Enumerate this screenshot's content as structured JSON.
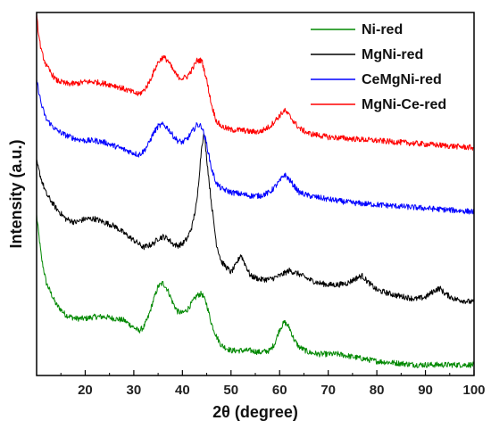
{
  "chart_data": {
    "type": "line",
    "title": "",
    "xlabel": "2θ (degree)",
    "ylabel": "Intensity (a.u.)",
    "xlim": [
      10,
      100
    ],
    "xticks": [
      20,
      30,
      40,
      50,
      60,
      70,
      80,
      90,
      100
    ],
    "ylim": [
      0,
      100
    ],
    "y_tick_labels": false,
    "grid": false,
    "legend_position": "top-right",
    "series": [
      {
        "name": "Ni-red",
        "color": "#008800",
        "x": [
          10,
          11,
          12,
          14,
          16,
          18,
          20,
          22,
          24,
          26,
          28,
          30,
          31,
          32,
          33,
          34,
          35,
          36,
          37,
          38,
          39,
          40,
          41,
          42,
          43,
          44,
          45,
          46,
          47,
          48,
          50,
          52,
          54,
          56,
          58,
          59,
          60,
          61,
          62,
          63,
          64,
          66,
          68,
          70,
          72,
          74,
          76,
          78,
          80,
          84,
          88,
          92,
          96,
          100
        ],
        "y": [
          44,
          32,
          25,
          19,
          16,
          15,
          15,
          15.5,
          15.5,
          15,
          14.5,
          12.5,
          11.5,
          12.5,
          15.5,
          20,
          24,
          25,
          23,
          19.5,
          17,
          16.5,
          17.5,
          19.5,
          21.5,
          22,
          19,
          13.5,
          10,
          7.5,
          6,
          6,
          6,
          5.5,
          6,
          8,
          12,
          14,
          12.5,
          9,
          7,
          5.5,
          5,
          5,
          5,
          4.5,
          4,
          3.5,
          3,
          2.5,
          2,
          2,
          2,
          2
        ]
      },
      {
        "name": "MgNi-red",
        "color": "#000000",
        "x": [
          10,
          11,
          12,
          14,
          16,
          18,
          20,
          22,
          24,
          26,
          28,
          30,
          32,
          34,
          35,
          36,
          37,
          38,
          39,
          40,
          41,
          42,
          43,
          43.5,
          44,
          44.5,
          45,
          46,
          47,
          48,
          50,
          51,
          52,
          53,
          54,
          56,
          58,
          60,
          62,
          64,
          66,
          68,
          70,
          72,
          74,
          76,
          77,
          78,
          80,
          84,
          88,
          90,
          92,
          93,
          94,
          96,
          100
        ],
        "y": [
          59,
          54,
          50,
          46,
          43,
          42,
          43,
          43,
          42,
          41,
          39,
          37,
          35,
          36,
          37.5,
          38,
          37.5,
          36,
          35.5,
          36,
          37.5,
          41,
          48,
          56,
          64,
          67,
          60,
          47,
          36,
          31,
          28,
          30,
          33,
          30,
          27,
          26,
          26,
          27,
          28.5,
          27.5,
          26,
          25,
          24.5,
          24.5,
          25,
          26.5,
          27,
          25.5,
          23,
          21.5,
          20.5,
          21,
          23,
          23.5,
          22,
          20.5,
          19.5
        ]
      },
      {
        "name": "CeMgNi-red",
        "color": "#0000ff",
        "x": [
          10,
          11,
          12,
          14,
          16,
          18,
          20,
          22,
          24,
          26,
          28,
          30,
          31,
          32,
          33,
          34,
          35,
          36,
          37,
          38,
          39,
          40,
          41,
          42,
          43,
          44,
          45,
          46,
          47,
          48,
          50,
          52,
          54,
          56,
          58,
          60,
          61,
          62,
          64,
          66,
          70,
          75,
          80,
          85,
          90,
          95,
          100
        ],
        "y": [
          82,
          75,
          71,
          68,
          66.5,
          65.5,
          65,
          65,
          64.5,
          63.5,
          62.5,
          61.5,
          61,
          62,
          64,
          67,
          69,
          69.5,
          68.5,
          66.5,
          65,
          64.5,
          65.5,
          67.5,
          69.5,
          69,
          64,
          57,
          53,
          51.5,
          50.5,
          50,
          49.5,
          49.5,
          50.5,
          53.5,
          55.5,
          54,
          50.5,
          49.5,
          48.5,
          47.5,
          47,
          46.5,
          46,
          45.5,
          45
        ]
      },
      {
        "name": "MgNi-Ce-red",
        "color": "#ff0000",
        "x": [
          10,
          10.5,
          11,
          12,
          14,
          16,
          18,
          20,
          22,
          24,
          26,
          28,
          30,
          31,
          32,
          33,
          34,
          35,
          36,
          37,
          38,
          39,
          40,
          41,
          42,
          43,
          44,
          45,
          46,
          47,
          48,
          50,
          52,
          54,
          56,
          58,
          60,
          61,
          62,
          64,
          66,
          70,
          75,
          80,
          85,
          90,
          95,
          100
        ],
        "y": [
          100,
          94,
          90,
          86,
          82,
          81,
          81,
          81.5,
          81.5,
          81,
          80.5,
          79.5,
          78.5,
          78,
          79,
          81,
          84,
          87,
          88.5,
          87.5,
          85,
          83,
          82.5,
          83,
          85,
          87.5,
          87.5,
          82,
          75,
          70.5,
          69,
          68,
          68,
          67.5,
          67.5,
          69,
          72,
          73.5,
          72,
          68.5,
          67,
          66,
          65.5,
          65,
          64.5,
          64,
          63.5,
          63
        ]
      }
    ]
  }
}
